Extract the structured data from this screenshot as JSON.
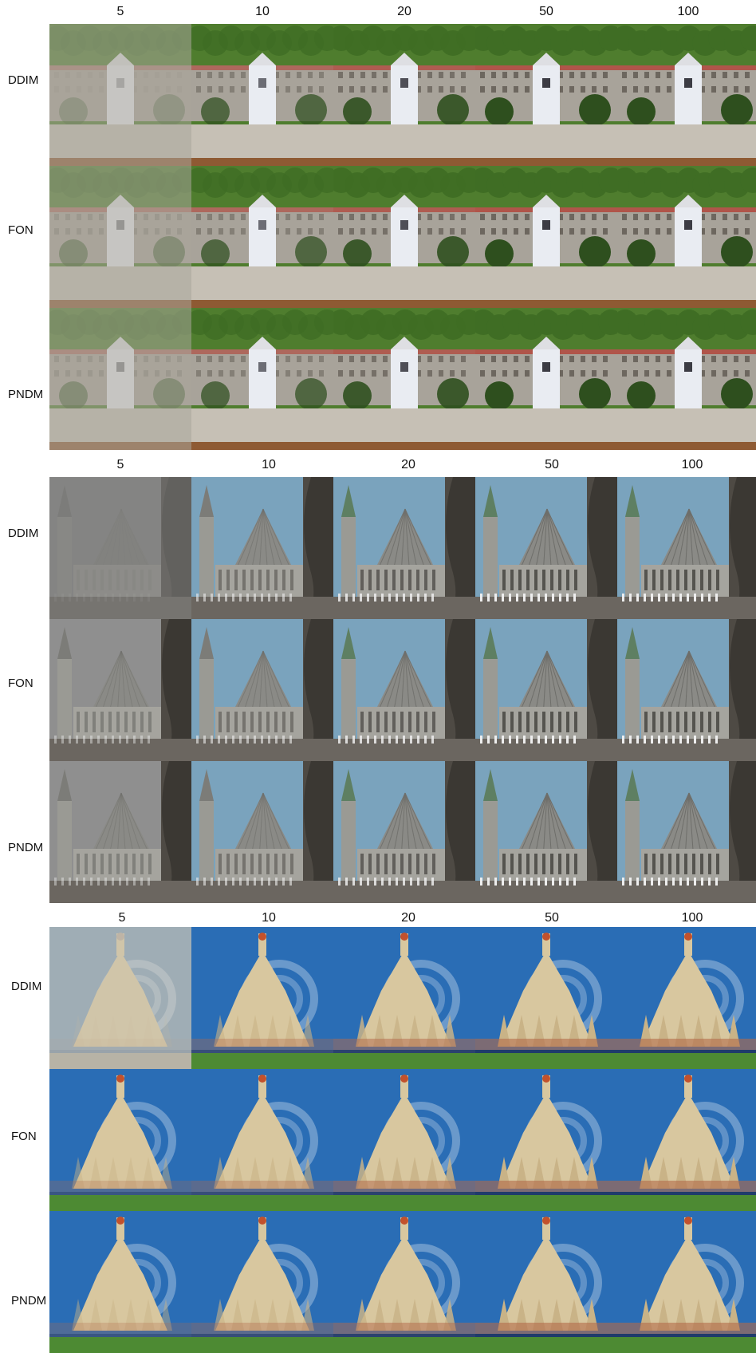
{
  "columns": [
    "5",
    "10",
    "20",
    "50",
    "100"
  ],
  "rows": [
    "DDIM",
    "FON",
    "PNDM"
  ],
  "panels": [
    {
      "scene": "courtyard-house",
      "columns": [
        "5",
        "10",
        "20",
        "50",
        "100"
      ],
      "rows": [
        "DDIM",
        "FON",
        "PNDM"
      ],
      "colors": {
        "sky": "#4f7d2e",
        "wall": "#a8a39a",
        "accent": "#e9ecf2",
        "ground": "#c6c0b5"
      }
    },
    {
      "scene": "cathedral-dome",
      "columns": [
        "5",
        "10",
        "20",
        "50",
        "100"
      ],
      "rows": [
        "DDIM",
        "FON",
        "PNDM"
      ],
      "colors": {
        "sky": "#7aa3bd",
        "wall": "#8a8a86",
        "accent": "#5e7f62",
        "ground": "#6b6660"
      }
    },
    {
      "scene": "baroque-church",
      "columns": [
        "5",
        "10",
        "20",
        "50",
        "100"
      ],
      "rows": [
        "DDIM",
        "FON",
        "PNDM"
      ],
      "colors": {
        "sky": "#2a6db5",
        "wall": "#d8c79f",
        "accent": "#c2512c",
        "ground": "#4d8a33"
      }
    }
  ]
}
